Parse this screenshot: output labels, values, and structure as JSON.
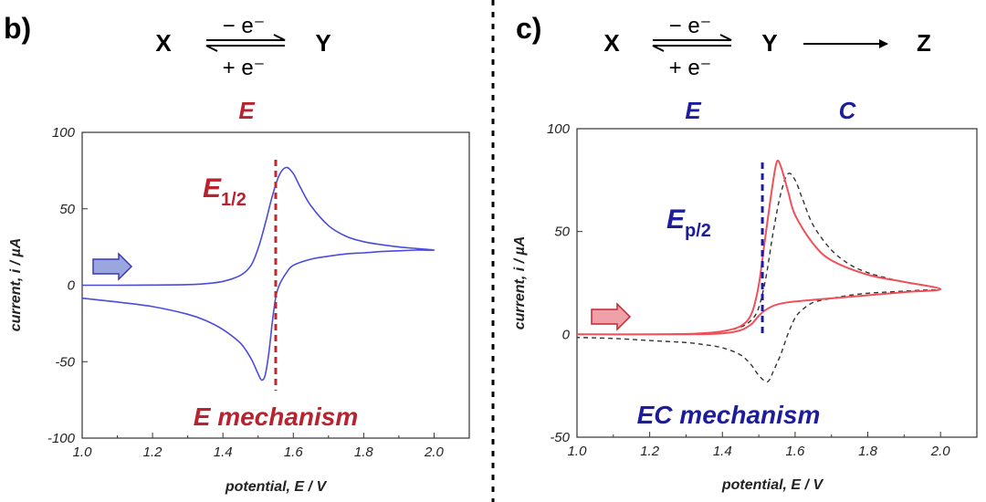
{
  "panels": [
    {
      "label": "b)",
      "scheme": {
        "reactant": "X",
        "product": "Y",
        "forward": "− e⁻",
        "backward": "+ e⁻"
      },
      "steps": [
        "E"
      ],
      "mechanism": "E mechanism",
      "marker": {
        "main": "E",
        "sub": "1/2",
        "potential": 1.55
      },
      "colors": {
        "curve": "#4b4bdc",
        "marker": "#c0282f",
        "arrow_fill": "#9aa6e0",
        "arrow_stroke": "#3a3ab0"
      }
    },
    {
      "label": "c)",
      "scheme": {
        "reactant": "X",
        "product": "Y",
        "product2": "Z",
        "forward": "− e⁻",
        "backward": "+ e⁻"
      },
      "steps": [
        "E",
        "C"
      ],
      "mechanism": "EC mechanism",
      "marker": {
        "main": "E",
        "sub": "p/2",
        "potential": 1.51
      },
      "colors": {
        "curve": "#f0505a",
        "reference": "#333333",
        "marker": "#1c1c9c",
        "arrow_fill": "#f0a0a8",
        "arrow_stroke": "#c0282f"
      }
    }
  ],
  "chart_data": [
    {
      "type": "line",
      "xlabel": "potential, E / V",
      "ylabel": "current, i / µA",
      "xlim": [
        1.0,
        2.1
      ],
      "ylim": [
        -100,
        100
      ],
      "xticks": [
        "1.0",
        "1.2",
        "1.4",
        "1.6",
        "1.8",
        "2.0"
      ],
      "yticks": [
        "100",
        "50",
        "0",
        "-50",
        "-100"
      ],
      "series": [
        {
          "style": "solid",
          "points": [
            [
              1.0,
              0
            ],
            [
              1.1,
              0
            ],
            [
              1.2,
              0.1
            ],
            [
              1.3,
              0.4
            ],
            [
              1.35,
              1
            ],
            [
              1.4,
              2.5
            ],
            [
              1.45,
              6.5
            ],
            [
              1.48,
              13
            ],
            [
              1.5,
              24
            ],
            [
              1.52,
              40
            ],
            [
              1.54,
              58
            ],
            [
              1.56,
              72
            ],
            [
              1.58,
              77
            ],
            [
              1.6,
              73
            ],
            [
              1.62,
              64
            ],
            [
              1.65,
              52
            ],
            [
              1.7,
              39
            ],
            [
              1.75,
              32
            ],
            [
              1.8,
              28.5
            ],
            [
              1.85,
              26.5
            ],
            [
              1.9,
              25
            ],
            [
              1.95,
              24
            ],
            [
              2.0,
              23
            ],
            [
              1.95,
              23
            ],
            [
              1.9,
              22.5
            ],
            [
              1.85,
              22
            ],
            [
              1.8,
              21.2
            ],
            [
              1.75,
              20.5
            ],
            [
              1.7,
              19
            ],
            [
              1.65,
              17
            ],
            [
              1.6,
              13
            ],
            [
              1.58,
              8
            ],
            [
              1.56,
              0
            ],
            [
              1.55,
              -8
            ],
            [
              1.54,
              -25
            ],
            [
              1.53,
              -45
            ],
            [
              1.52,
              -59
            ],
            [
              1.51,
              -62
            ],
            [
              1.5,
              -58
            ],
            [
              1.48,
              -48
            ],
            [
              1.45,
              -38
            ],
            [
              1.4,
              -29
            ],
            [
              1.35,
              -23
            ],
            [
              1.3,
              -19
            ],
            [
              1.2,
              -14
            ],
            [
              1.1,
              -11
            ],
            [
              1.0,
              -8.5
            ]
          ]
        }
      ]
    },
    {
      "type": "line",
      "xlabel": "potential, E / V",
      "ylabel": "current, i / µA",
      "xlim": [
        1.0,
        2.1
      ],
      "ylim": [
        -50,
        100
      ],
      "xticks": [
        "1.0",
        "1.2",
        "1.4",
        "1.6",
        "1.8",
        "2.0"
      ],
      "yticks": [
        "100",
        "50",
        "0",
        "-50"
      ],
      "series": [
        {
          "style": "solid",
          "points": [
            [
              1.0,
              0
            ],
            [
              1.2,
              0
            ],
            [
              1.3,
              0.2
            ],
            [
              1.35,
              0.6
            ],
            [
              1.4,
              1.5
            ],
            [
              1.45,
              4
            ],
            [
              1.48,
              10
            ],
            [
              1.5,
              24
            ],
            [
              1.52,
              50
            ],
            [
              1.54,
              75
            ],
            [
              1.55,
              84
            ],
            [
              1.56,
              82
            ],
            [
              1.58,
              70
            ],
            [
              1.6,
              58
            ],
            [
              1.65,
              44
            ],
            [
              1.7,
              36
            ],
            [
              1.8,
              29
            ],
            [
              1.9,
              25.5
            ],
            [
              2.0,
              22
            ],
            [
              1.9,
              20.5
            ],
            [
              1.8,
              19
            ],
            [
              1.7,
              17.5
            ],
            [
              1.6,
              16
            ],
            [
              1.55,
              14.5
            ],
            [
              1.52,
              12
            ],
            [
              1.5,
              9
            ],
            [
              1.48,
              5
            ],
            [
              1.45,
              2
            ],
            [
              1.4,
              0.5
            ],
            [
              1.3,
              0
            ],
            [
              1.0,
              0
            ]
          ]
        },
        {
          "style": "dashed",
          "points": [
            [
              1.0,
              0
            ],
            [
              1.2,
              0
            ],
            [
              1.3,
              0.2
            ],
            [
              1.35,
              0.5
            ],
            [
              1.4,
              1.5
            ],
            [
              1.45,
              3.5
            ],
            [
              1.48,
              7
            ],
            [
              1.5,
              13
            ],
            [
              1.52,
              28
            ],
            [
              1.54,
              50
            ],
            [
              1.56,
              68
            ],
            [
              1.58,
              78
            ],
            [
              1.6,
              75
            ],
            [
              1.62,
              66
            ],
            [
              1.65,
              53
            ],
            [
              1.7,
              41
            ],
            [
              1.75,
              34
            ],
            [
              1.8,
              30
            ],
            [
              1.85,
              27.5
            ],
            [
              1.9,
              25.5
            ],
            [
              1.95,
              24
            ],
            [
              2.0,
              22
            ],
            [
              1.95,
              21.5
            ],
            [
              1.9,
              21
            ],
            [
              1.85,
              20.5
            ],
            [
              1.8,
              20
            ],
            [
              1.75,
              19
            ],
            [
              1.7,
              17.5
            ],
            [
              1.65,
              15.5
            ],
            [
              1.62,
              12
            ],
            [
              1.6,
              8
            ],
            [
              1.58,
              0
            ],
            [
              1.56,
              -10
            ],
            [
              1.54,
              -18
            ],
            [
              1.53,
              -22
            ],
            [
              1.52,
              -23
            ],
            [
              1.5,
              -20
            ],
            [
              1.48,
              -15
            ],
            [
              1.45,
              -10
            ],
            [
              1.4,
              -6.5
            ],
            [
              1.35,
              -5
            ],
            [
              1.3,
              -4
            ],
            [
              1.2,
              -3
            ],
            [
              1.1,
              -2
            ],
            [
              1.0,
              -1.5
            ]
          ]
        }
      ]
    }
  ]
}
